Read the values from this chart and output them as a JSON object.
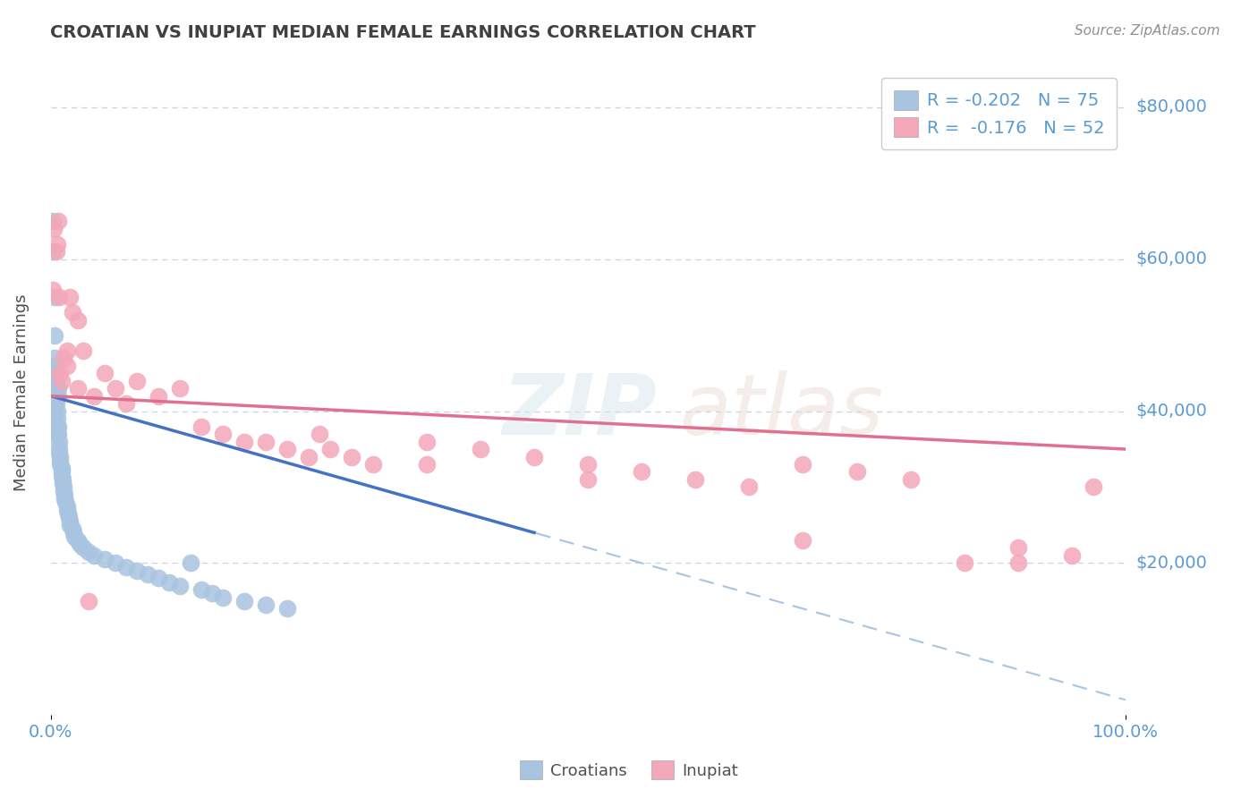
{
  "title": "CROATIAN VS INUPIAT MEDIAN FEMALE EARNINGS CORRELATION CHART",
  "source": "Source: ZipAtlas.com",
  "ylabel": "Median Female Earnings",
  "xlim": [
    0.0,
    1.0
  ],
  "ylim": [
    0,
    85000
  ],
  "yticks": [
    20000,
    40000,
    60000,
    80000
  ],
  "ytick_labels": [
    "$20,000",
    "$40,000",
    "$60,000",
    "$80,000"
  ],
  "xtick_labels": [
    "0.0%",
    "100.0%"
  ],
  "croatian_color": "#a8c4e0",
  "inupiat_color": "#f4a7b9",
  "croatian_line_color": "#4472c4",
  "inupiat_line_color": "#e07090",
  "dashed_line_color": "#a8c4e0",
  "title_color": "#404040",
  "axis_label_color": "#505050",
  "tick_color": "#5b9bd5",
  "source_color": "#909090",
  "legend_r1": "-0.202",
  "legend_n1": "75",
  "legend_r2": "-0.176",
  "legend_n2": "52",
  "background_color": "#ffffff",
  "grid_color": "#c8d4e4",
  "croatian_x": [
    0.001,
    0.001,
    0.001,
    0.002,
    0.002,
    0.002,
    0.002,
    0.003,
    0.003,
    0.003,
    0.003,
    0.003,
    0.003,
    0.004,
    0.004,
    0.004,
    0.004,
    0.005,
    0.005,
    0.005,
    0.005,
    0.005,
    0.006,
    0.006,
    0.006,
    0.006,
    0.007,
    0.007,
    0.007,
    0.007,
    0.008,
    0.008,
    0.008,
    0.009,
    0.009,
    0.009,
    0.01,
    0.01,
    0.01,
    0.011,
    0.011,
    0.012,
    0.012,
    0.013,
    0.013,
    0.014,
    0.015,
    0.015,
    0.016,
    0.017,
    0.018,
    0.018,
    0.02,
    0.021,
    0.022,
    0.025,
    0.027,
    0.03,
    0.035,
    0.04,
    0.05,
    0.06,
    0.07,
    0.08,
    0.09,
    0.1,
    0.11,
    0.12,
    0.13,
    0.14,
    0.15,
    0.16,
    0.18,
    0.2,
    0.22
  ],
  "croatian_y": [
    41000,
    40000,
    39000,
    65000,
    61000,
    45000,
    44000,
    43000,
    42000,
    41000,
    40000,
    39000,
    38000,
    55000,
    50000,
    47000,
    46000,
    45000,
    44000,
    43000,
    42000,
    41000,
    40000,
    39000,
    38000,
    37000,
    43000,
    42000,
    38000,
    37000,
    36000,
    35000,
    34500,
    34000,
    33500,
    33000,
    32500,
    32000,
    31500,
    31000,
    30500,
    30000,
    29500,
    29000,
    28500,
    28000,
    27500,
    27000,
    26500,
    26000,
    25500,
    25000,
    24500,
    24000,
    23500,
    23000,
    22500,
    22000,
    21500,
    21000,
    20500,
    20000,
    19500,
    19000,
    18500,
    18000,
    17500,
    17000,
    20000,
    16500,
    16000,
    15500,
    15000,
    14500,
    14000
  ],
  "inupiat_x": [
    0.002,
    0.003,
    0.005,
    0.006,
    0.007,
    0.008,
    0.009,
    0.01,
    0.012,
    0.015,
    0.018,
    0.02,
    0.025,
    0.03,
    0.04,
    0.05,
    0.06,
    0.07,
    0.08,
    0.1,
    0.12,
    0.14,
    0.16,
    0.18,
    0.2,
    0.22,
    0.24,
    0.26,
    0.28,
    0.3,
    0.35,
    0.4,
    0.45,
    0.5,
    0.55,
    0.6,
    0.65,
    0.7,
    0.75,
    0.8,
    0.85,
    0.9,
    0.95,
    0.97,
    0.015,
    0.025,
    0.035,
    0.25,
    0.35,
    0.5,
    0.7,
    0.9
  ],
  "inupiat_y": [
    56000,
    64000,
    61000,
    62000,
    65000,
    55000,
    45000,
    44000,
    47000,
    46000,
    55000,
    53000,
    52000,
    48000,
    42000,
    45000,
    43000,
    41000,
    44000,
    42000,
    43000,
    38000,
    37000,
    36000,
    36000,
    35000,
    34000,
    35000,
    34000,
    33000,
    36000,
    35000,
    34000,
    33000,
    32000,
    31000,
    30000,
    33000,
    32000,
    31000,
    20000,
    22000,
    21000,
    30000,
    48000,
    43000,
    15000,
    37000,
    33000,
    31000,
    23000,
    20000
  ]
}
